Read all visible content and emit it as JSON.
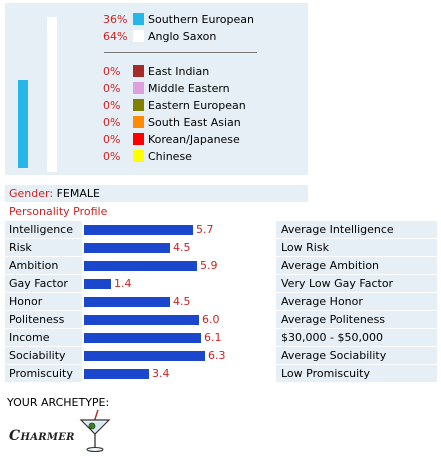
{
  "ancestry": {
    "items": [
      {
        "pct": "36%",
        "label": "Southern European",
        "color": "#27b6e8",
        "level": 0.36
      },
      {
        "pct": "64%",
        "label": "Anglo Saxon",
        "color": "#ffffff",
        "level": 0.64
      },
      {
        "pct": "0%",
        "label": "East Indian",
        "color": "#a52a2a"
      },
      {
        "pct": "0%",
        "label": "Middle Eastern",
        "color": "#dda0dd"
      },
      {
        "pct": "0%",
        "label": "Eastern European",
        "color": "#808000"
      },
      {
        "pct": "0%",
        "label": "South East Asian",
        "color": "#ff8c00"
      },
      {
        "pct": "0%",
        "label": "Korean/Japanese",
        "color": "#ff0000"
      },
      {
        "pct": "0%",
        "label": "Chinese",
        "color": "#ffff00"
      }
    ]
  },
  "profile": {
    "gender_label": "Gender:",
    "gender_value": "FEMALE",
    "title": "Personality Profile",
    "bar_color": "#1a47cc",
    "max_score": 10,
    "rows": [
      {
        "name": "Intelligence",
        "score": 5.7,
        "score_text": "5.7",
        "desc": "Average Intelligence"
      },
      {
        "name": "Risk",
        "score": 4.5,
        "score_text": "4.5",
        "desc": "Low Risk"
      },
      {
        "name": "Ambition",
        "score": 5.9,
        "score_text": "5.9",
        "desc": "Average Ambition"
      },
      {
        "name": "Gay Factor",
        "score": 1.4,
        "score_text": "1.4",
        "desc": "Very Low Gay Factor"
      },
      {
        "name": "Honor",
        "score": 4.5,
        "score_text": "4.5",
        "desc": "Average Honor"
      },
      {
        "name": "Politeness",
        "score": 6.0,
        "score_text": "6.0",
        "desc": "Average Politeness"
      },
      {
        "name": "Income",
        "score": 6.1,
        "score_text": "6.1",
        "desc": "$30,000 - $50,000"
      },
      {
        "name": "Sociability",
        "score": 6.3,
        "score_text": "6.3",
        "desc": "Average Sociability"
      },
      {
        "name": "Promiscuity",
        "score": 3.4,
        "score_text": "3.4",
        "desc": "Low Promiscuity"
      }
    ]
  },
  "archetype": {
    "heading": "YOUR ARCHETYPE:",
    "name": "Charmer",
    "icon": "martini-glass-icon"
  }
}
